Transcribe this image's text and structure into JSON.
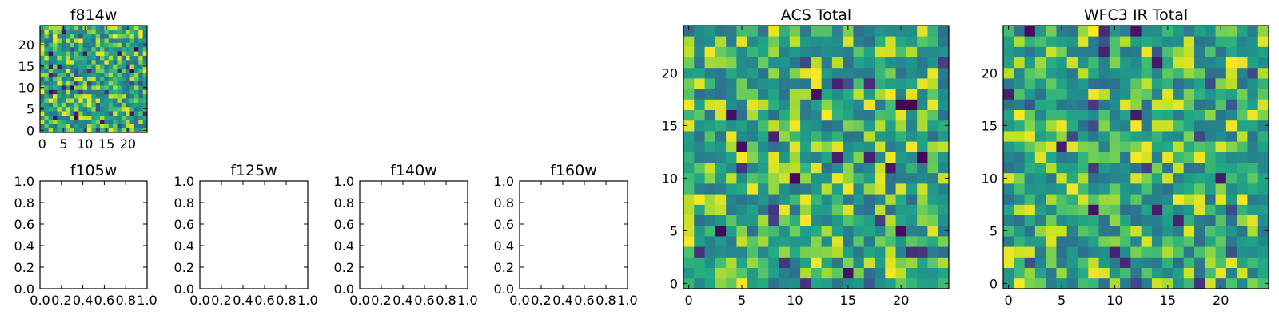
{
  "chart_data": [
    {
      "id": "f814w",
      "type": "heatmap",
      "title": "f814w",
      "grid_size": 25,
      "xlim": [
        -0.5,
        24.5
      ],
      "ylim": [
        -0.5,
        24.5
      ],
      "xticks": [
        0,
        5,
        10,
        15,
        20
      ],
      "yticks": [
        0,
        5,
        10,
        15,
        20
      ],
      "xtick_labels": [
        "0",
        "5",
        "10",
        "15",
        "20"
      ],
      "ytick_labels": [
        "0",
        "5",
        "10",
        "15",
        "20"
      ],
      "colormap": "viridis",
      "seed": 814,
      "values": []
    },
    {
      "id": "f105w",
      "type": "empty",
      "title": "f105w",
      "xlim": [
        0,
        1
      ],
      "ylim": [
        0,
        1
      ],
      "xticks": [
        0,
        0.2,
        0.4,
        0.6,
        0.8,
        1.0
      ],
      "yticks": [
        0,
        0.2,
        0.4,
        0.6,
        0.8,
        1.0
      ],
      "xtick_labels": [
        "0.0",
        "0.2",
        "0.4",
        "0.6",
        "0.8",
        "1.0"
      ],
      "ytick_labels": [
        "0.0",
        "0.2",
        "0.4",
        "0.6",
        "0.8",
        "1.0"
      ]
    },
    {
      "id": "f125w",
      "type": "empty",
      "title": "f125w",
      "xlim": [
        0,
        1
      ],
      "ylim": [
        0,
        1
      ],
      "xticks": [
        0,
        0.2,
        0.4,
        0.6,
        0.8,
        1.0
      ],
      "yticks": [
        0,
        0.2,
        0.4,
        0.6,
        0.8,
        1.0
      ],
      "xtick_labels": [
        "0.0",
        "0.2",
        "0.4",
        "0.6",
        "0.8",
        "1.0"
      ],
      "ytick_labels": [
        "0.0",
        "0.2",
        "0.4",
        "0.6",
        "0.8",
        "1.0"
      ]
    },
    {
      "id": "f140w",
      "type": "empty",
      "title": "f140w",
      "xlim": [
        0,
        1
      ],
      "ylim": [
        0,
        1
      ],
      "xticks": [
        0,
        0.2,
        0.4,
        0.6,
        0.8,
        1.0
      ],
      "yticks": [
        0,
        0.2,
        0.4,
        0.6,
        0.8,
        1.0
      ],
      "xtick_labels": [
        "0.0",
        "0.2",
        "0.4",
        "0.6",
        "0.8",
        "1.0"
      ],
      "ytick_labels": [
        "0.0",
        "0.2",
        "0.4",
        "0.6",
        "0.8",
        "1.0"
      ]
    },
    {
      "id": "f160w",
      "type": "empty",
      "title": "f160w",
      "xlim": [
        0,
        1
      ],
      "ylim": [
        0,
        1
      ],
      "xticks": [
        0,
        0.2,
        0.4,
        0.6,
        0.8,
        1.0
      ],
      "yticks": [
        0,
        0.2,
        0.4,
        0.6,
        0.8,
        1.0
      ],
      "xtick_labels": [
        "0.0",
        "0.2",
        "0.4",
        "0.6",
        "0.8",
        "1.0"
      ],
      "ytick_labels": [
        "0.0",
        "0.2",
        "0.4",
        "0.6",
        "0.8",
        "1.0"
      ]
    },
    {
      "id": "acs-total",
      "type": "heatmap",
      "title": "ACS Total",
      "grid_size": 25,
      "xlim": [
        -0.5,
        24.5
      ],
      "ylim": [
        -0.5,
        24.5
      ],
      "xticks": [
        0,
        5,
        10,
        15,
        20
      ],
      "yticks": [
        0,
        5,
        10,
        15,
        20
      ],
      "xtick_labels": [
        "0",
        "5",
        "10",
        "15",
        "20"
      ],
      "ytick_labels": [
        "0",
        "5",
        "10",
        "15",
        "20"
      ],
      "colormap": "viridis",
      "seed": 1001,
      "values": []
    },
    {
      "id": "wfc3-ir-total",
      "type": "heatmap",
      "title": "WFC3 IR Total",
      "grid_size": 25,
      "xlim": [
        -0.5,
        24.5
      ],
      "ylim": [
        -0.5,
        24.5
      ],
      "xticks": [
        0,
        5,
        10,
        15,
        20
      ],
      "yticks": [
        0,
        5,
        10,
        15,
        20
      ],
      "xtick_labels": [
        "0",
        "5",
        "10",
        "15",
        "20"
      ],
      "ytick_labels": [
        "0",
        "5",
        "10",
        "15",
        "20"
      ],
      "colormap": "viridis",
      "seed": 3003,
      "values": []
    }
  ]
}
